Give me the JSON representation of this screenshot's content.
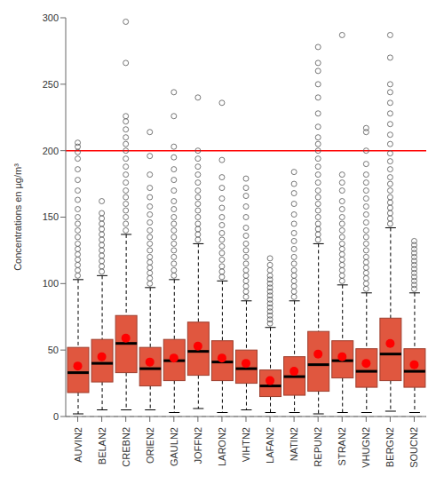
{
  "chart_data": {
    "type": "boxplot",
    "y_label": "Concentrations en µg/m³",
    "categories": [
      "AUVIN2",
      "BELAN2",
      "CREBN2",
      "ORIEN2",
      "GAULN2",
      "JOFFN2",
      "LARON2",
      "VIHTN2",
      "LAFAN2",
      "NATIN2",
      "REPUN2",
      "STRAN2",
      "VHUGN2",
      "BERGN2",
      "SOUCN2"
    ],
    "box": {
      "color": "#e0573f",
      "whisker_low": [
        2,
        5,
        5,
        5,
        3,
        6,
        3,
        5,
        3,
        3,
        2,
        3,
        3,
        4,
        3
      ],
      "q1": [
        18,
        26,
        33,
        23,
        27,
        31,
        27,
        25,
        15,
        16,
        19,
        29,
        22,
        27,
        22
      ],
      "median": [
        33,
        40,
        55,
        36,
        42,
        49,
        41,
        36,
        23,
        30,
        39,
        42,
        34,
        47,
        34
      ],
      "q3": [
        52,
        58,
        76,
        52,
        58,
        71,
        57,
        50,
        35,
        45,
        64,
        57,
        51,
        74,
        51
      ],
      "whisker_high": [
        103,
        106,
        137,
        97,
        103,
        130,
        102,
        87,
        67,
        87,
        130,
        99,
        93,
        142,
        93
      ]
    },
    "mean": {
      "color": "#ff0000",
      "marker": "circle",
      "values": [
        38,
        45,
        59,
        41,
        44,
        53,
        44,
        40,
        27,
        34,
        47,
        45,
        40,
        55,
        39
      ]
    },
    "outliers": {
      "color": "#555555",
      "marker": "circle",
      "values": [
        [
          106,
          110,
          114,
          118,
          122,
          126,
          130,
          135,
          140,
          145,
          150,
          156,
          163,
          170,
          178,
          186,
          194,
          199,
          203,
          206
        ],
        [
          109,
          113,
          117,
          121,
          125,
          129,
          133,
          137,
          141,
          145,
          149,
          153,
          162
        ],
        [
          140,
          145,
          150,
          155,
          160,
          165,
          170,
          176,
          182,
          188,
          194,
          200,
          205,
          210,
          216,
          222,
          226,
          266,
          297
        ],
        [
          100,
          104,
          108,
          112,
          116,
          120,
          125,
          130,
          135,
          140,
          146,
          152,
          158,
          165,
          172,
          182,
          196,
          214
        ],
        [
          106,
          110,
          115,
          120,
          125,
          130,
          135,
          140,
          145,
          150,
          156,
          162,
          170,
          178,
          186,
          195,
          203,
          226,
          244
        ],
        [
          133,
          137,
          141,
          145,
          150,
          155,
          160,
          165,
          170,
          176,
          182,
          188,
          194,
          200,
          240
        ],
        [
          105,
          109,
          113,
          118,
          123,
          128,
          133,
          138,
          144,
          150,
          157,
          164,
          172,
          180,
          193,
          236
        ],
        [
          90,
          94,
          98,
          102,
          106,
          110,
          115,
          120,
          125,
          130,
          136,
          142,
          150,
          158,
          166,
          172,
          179
        ],
        [
          70,
          73,
          76,
          79,
          82,
          85,
          88,
          91,
          94,
          97,
          100,
          103,
          106,
          110,
          114,
          119
        ],
        [
          90,
          94,
          98,
          102,
          106,
          110,
          115,
          120,
          126,
          132,
          138,
          145,
          152,
          160,
          168,
          175,
          184
        ],
        [
          133,
          137,
          141,
          145,
          150,
          155,
          160,
          165,
          170,
          176,
          182,
          188,
          194,
          200,
          205,
          210,
          218,
          228,
          240,
          250,
          260,
          266,
          278
        ],
        [
          102,
          106,
          110,
          114,
          118,
          122,
          126,
          130,
          135,
          140,
          145,
          150,
          156,
          162,
          170,
          176,
          182,
          287
        ],
        [
          96,
          100,
          104,
          108,
          112,
          116,
          120,
          125,
          130,
          135,
          140,
          146,
          152,
          158,
          164,
          170,
          176,
          182,
          190,
          200,
          214,
          217
        ],
        [
          145,
          149,
          153,
          157,
          161,
          165,
          170,
          175,
          180,
          186,
          192,
          198,
          205,
          212,
          220,
          228,
          236,
          244,
          250,
          270,
          287
        ],
        [
          96,
          99,
          102,
          105,
          108,
          111,
          114,
          117,
          120,
          123,
          126,
          129,
          132
        ]
      ]
    },
    "ylim": [
      0,
      300
    ],
    "yticks": [
      0,
      50,
      100,
      150,
      200,
      250,
      300
    ],
    "reference_lines": [
      {
        "y": 200,
        "color": "#ff0000"
      },
      {
        "y": 0,
        "color": "#aaaaaa",
        "line_style": "dashed"
      }
    ],
    "grid": false
  }
}
